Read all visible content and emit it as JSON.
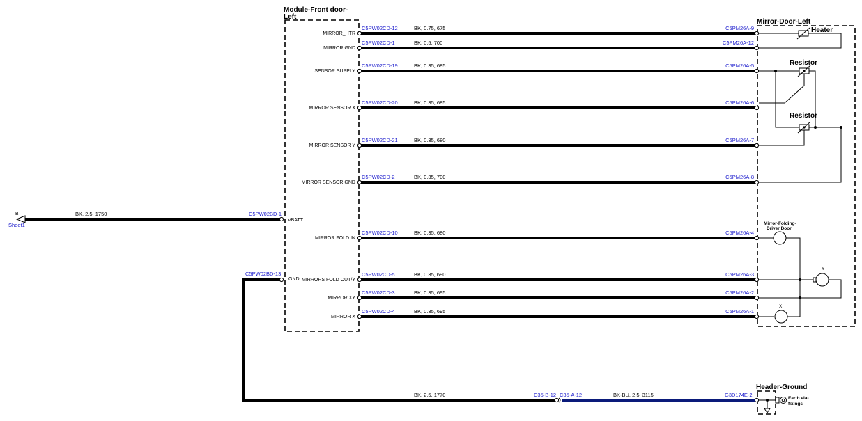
{
  "modules": {
    "front_door": {
      "title_line1": "Module-Front door-",
      "title_line2": "Left"
    },
    "mirror_door": {
      "title": "Mirror-Door-Left"
    },
    "header_ground": {
      "title": "Header-Ground"
    }
  },
  "components": {
    "heater": "Heater",
    "resistor_1": "Resistor",
    "resistor_2": "Resistor",
    "folding_motor_line1": "Mirror-Folding-",
    "folding_motor_line2": "Driver Door",
    "motor_y": "Y",
    "motor_x": "X",
    "earth_line1": "Earth via-",
    "earth_line2": "fixings"
  },
  "wires": [
    {
      "id": "mirror-htr",
      "pin": "MIRROR_HTR",
      "left_conn": "C5PW02CD-12",
      "spec": "BK,  0.75,  675",
      "right_conn": "C5PM26A-9"
    },
    {
      "id": "mirror-gnd",
      "pin": "MIRROR GND",
      "left_conn": "C5PW02CD-1",
      "spec": "BK,  0.5,  700",
      "right_conn": "C5PM26A-12"
    },
    {
      "id": "sensor-supply",
      "pin": "SENSOR SUPPLY",
      "left_conn": "C5PW02CD-19",
      "spec": "BK,  0.35,  685",
      "right_conn": "C5PM26A-5"
    },
    {
      "id": "mirror-sensor-x",
      "pin": "MIRROR SENSOR X",
      "left_conn": "C5PW02CD-20",
      "spec": "BK,  0.35,  685",
      "right_conn": "C5PM26A-6"
    },
    {
      "id": "mirror-sensor-y",
      "pin": "MIRROR SENSOR Y",
      "left_conn": "C5PW02CD-21",
      "spec": "BK,  0.35,  680",
      "right_conn": "C5PM26A-7"
    },
    {
      "id": "mirror-sensor-gnd",
      "pin": "MIRROR SENSOR GND",
      "left_conn": "C5PW02CD-2",
      "spec": "BK,  0.35,  700",
      "right_conn": "C5PM26A-8"
    },
    {
      "id": "mirror-fold-in",
      "pin": "MIRROR FOLD IN",
      "left_conn": "C5PW02CD-10",
      "spec": "BK,  0.35,  680",
      "right_conn": "C5PM26A-4"
    },
    {
      "id": "mirrors-fold-out",
      "pin": "MIRRORS FOLD OUT/Y",
      "left_conn": "C5PW02CD-5",
      "spec": "BK,  0.35,  690",
      "right_conn": "C5PM26A-3"
    },
    {
      "id": "mirror-xy",
      "pin": "MIRROR XY",
      "left_conn": "C5PW02CD-3",
      "spec": "BK,  0.35,  695",
      "right_conn": "C5PM26A-2"
    },
    {
      "id": "mirror-x",
      "pin": "MIRROR X",
      "left_conn": "C5PW02CD-4",
      "spec": "BK,  0.35,  695",
      "right_conn": "C5PM26A-1"
    }
  ],
  "vbatt": {
    "pin": "VBATT",
    "conn": "C5PW02BD-1",
    "spec": "BK,  2.5,  1750",
    "offsheet_label": "B",
    "offsheet_ref": "Sheet1"
  },
  "ground": {
    "pin": "GND",
    "conn": "C5PW02BD-13",
    "spec1": "BK,  2.5,  1770",
    "splice_left": "C35-B-12",
    "splice_right": "C35-A-12",
    "spec2": "BK-BU,  2.5,  3115",
    "end_conn": "G3D174E-2"
  },
  "colors": {
    "connector_text": "#1a1acc",
    "wire": "#000000",
    "wire_bk_bu": "#0a1a7a"
  }
}
